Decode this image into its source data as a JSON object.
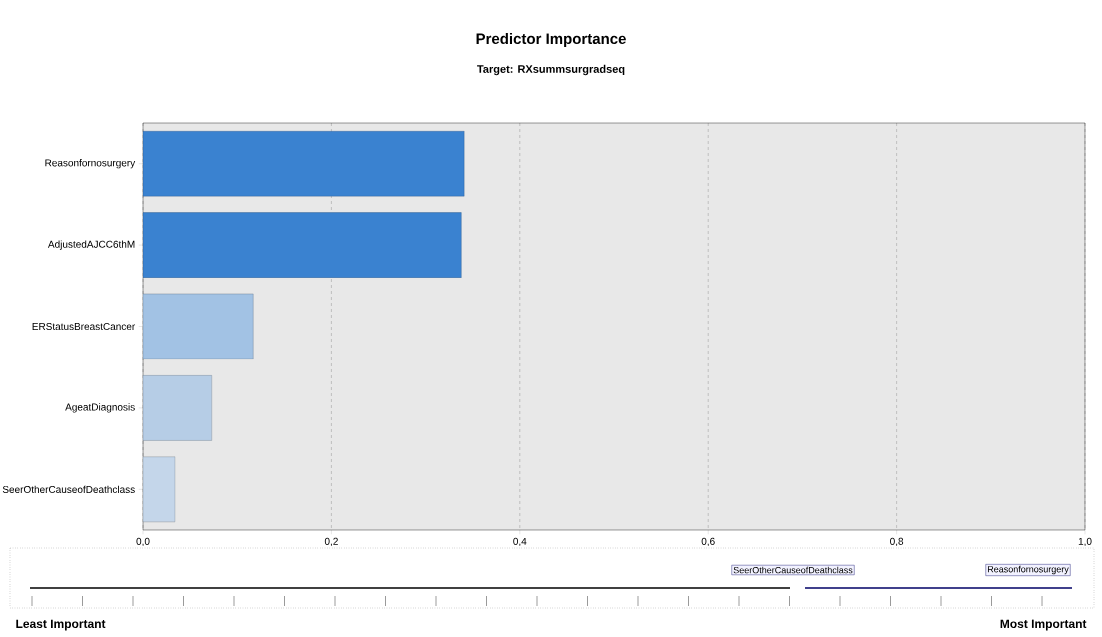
{
  "chart_data": {
    "type": "bar",
    "orientation": "horizontal",
    "title": "Predictor Importance",
    "subtitle": "Target: RXsummsurgradseq",
    "categories": [
      "Reasonfornosurgery",
      "AdjustedAJCC6thM",
      "ERStatusBreastCancer",
      "AgeatDiagnosis",
      "SeerOtherCauseofDeathclass"
    ],
    "values": [
      0.341,
      0.338,
      0.117,
      0.073,
      0.034
    ],
    "colors": [
      "#3a82d0",
      "#3a82d0",
      "#a2c2e4",
      "#b6cde6",
      "#c4d6ea"
    ],
    "xlim": [
      0,
      1
    ],
    "xticks": [
      {
        "value": 0,
        "label": "0,0"
      },
      {
        "value": 0.2,
        "label": "0,2"
      },
      {
        "value": 0.4,
        "label": "0,4"
      },
      {
        "value": 0.6,
        "label": "0,6"
      },
      {
        "value": 0.8,
        "label": "0,8"
      },
      {
        "value": 1,
        "label": "1,0"
      }
    ],
    "grid": "x",
    "annotations": [
      "SeerOtherCauseofDeathclass",
      "Reasonfornosurgery",
      "Least Important",
      "Most Important"
    ]
  }
}
